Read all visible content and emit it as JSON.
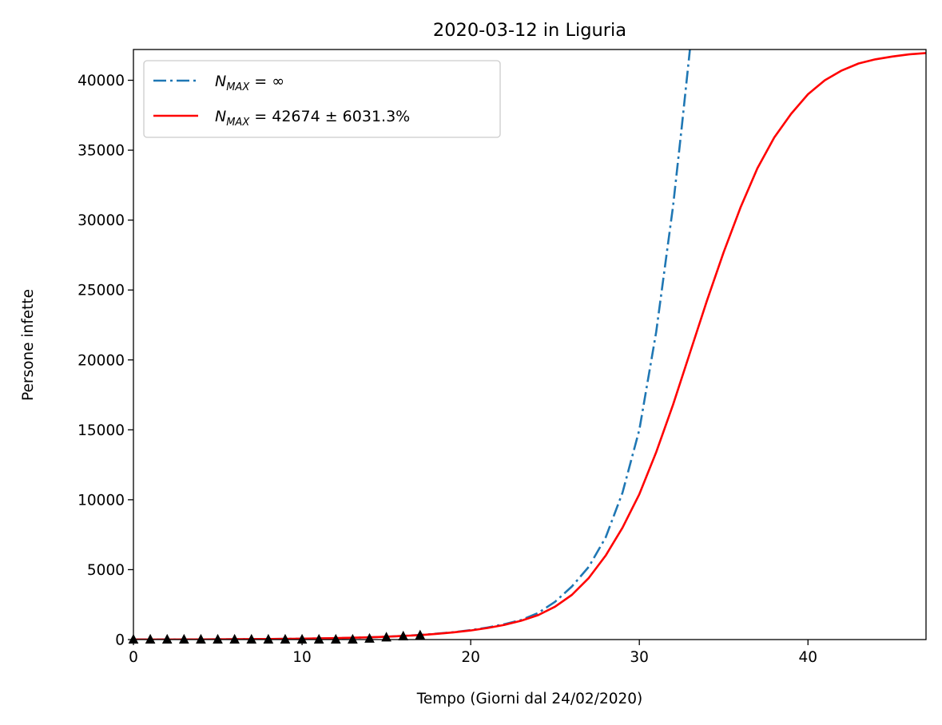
{
  "chart_data": {
    "type": "line",
    "title": "2020-03-12 in Liguria",
    "xlabel": "Tempo (Giorni dal 24/02/2020)",
    "ylabel": "Persone infette",
    "xlim": [
      0,
      47
    ],
    "ylim": [
      0,
      42200
    ],
    "xticks": [
      0,
      10,
      20,
      30,
      40
    ],
    "yticks": [
      0,
      5000,
      10000,
      15000,
      20000,
      25000,
      30000,
      35000,
      40000
    ],
    "grid": false,
    "legend_position": "top-left",
    "series": [
      {
        "name_base": "N",
        "name_sub": "MAX",
        "name_rest": " = ∞",
        "style": "dashdot",
        "color": "#1f77b4",
        "x": [
          0,
          2,
          4,
          6,
          8,
          10,
          12,
          14,
          15,
          16,
          17,
          18,
          19,
          20,
          21,
          22,
          23,
          24,
          25,
          26,
          27,
          28,
          29,
          30,
          31,
          32,
          32.5,
          33
        ],
        "y": [
          5,
          8,
          14,
          23,
          38,
          62,
          100,
          162,
          205,
          260,
          330,
          420,
          530,
          680,
          860,
          1100,
          1400,
          1900,
          2700,
          3800,
          5200,
          7300,
          10500,
          15000,
          22000,
          31000,
          36500,
          42200
        ]
      },
      {
        "name_base": "N",
        "name_sub": "MAX",
        "name_rest": " = 42674 ± 6031.3%",
        "style": "solid",
        "color": "#ff0000",
        "x": [
          0,
          2,
          4,
          6,
          8,
          10,
          12,
          14,
          15,
          16,
          17,
          18,
          19,
          20,
          21,
          22,
          23,
          24,
          25,
          26,
          27,
          28,
          29,
          30,
          31,
          32,
          33,
          34,
          35,
          36,
          37,
          38,
          39,
          40,
          41,
          42,
          43,
          44,
          45,
          46,
          47
        ],
        "y": [
          5,
          8,
          14,
          23,
          38,
          62,
          100,
          162,
          205,
          260,
          320,
          410,
          520,
          650,
          830,
          1050,
          1350,
          1750,
          2350,
          3200,
          4400,
          6000,
          8000,
          10400,
          13400,
          16800,
          20500,
          24200,
          27700,
          30900,
          33700,
          35900,
          37600,
          39000,
          40000,
          40700,
          41200,
          41500,
          41700,
          41850,
          41950
        ]
      }
    ],
    "observations": {
      "marker": "triangle",
      "color": "#000000",
      "x": [
        0,
        1,
        2,
        3,
        4,
        5,
        6,
        7,
        8,
        9,
        10,
        11,
        12,
        13,
        14,
        15,
        16,
        17
      ],
      "y": [
        0,
        0,
        0,
        0,
        0,
        0,
        0,
        0,
        0,
        0,
        0,
        0,
        0,
        0,
        62,
        150,
        230,
        300
      ]
    }
  }
}
